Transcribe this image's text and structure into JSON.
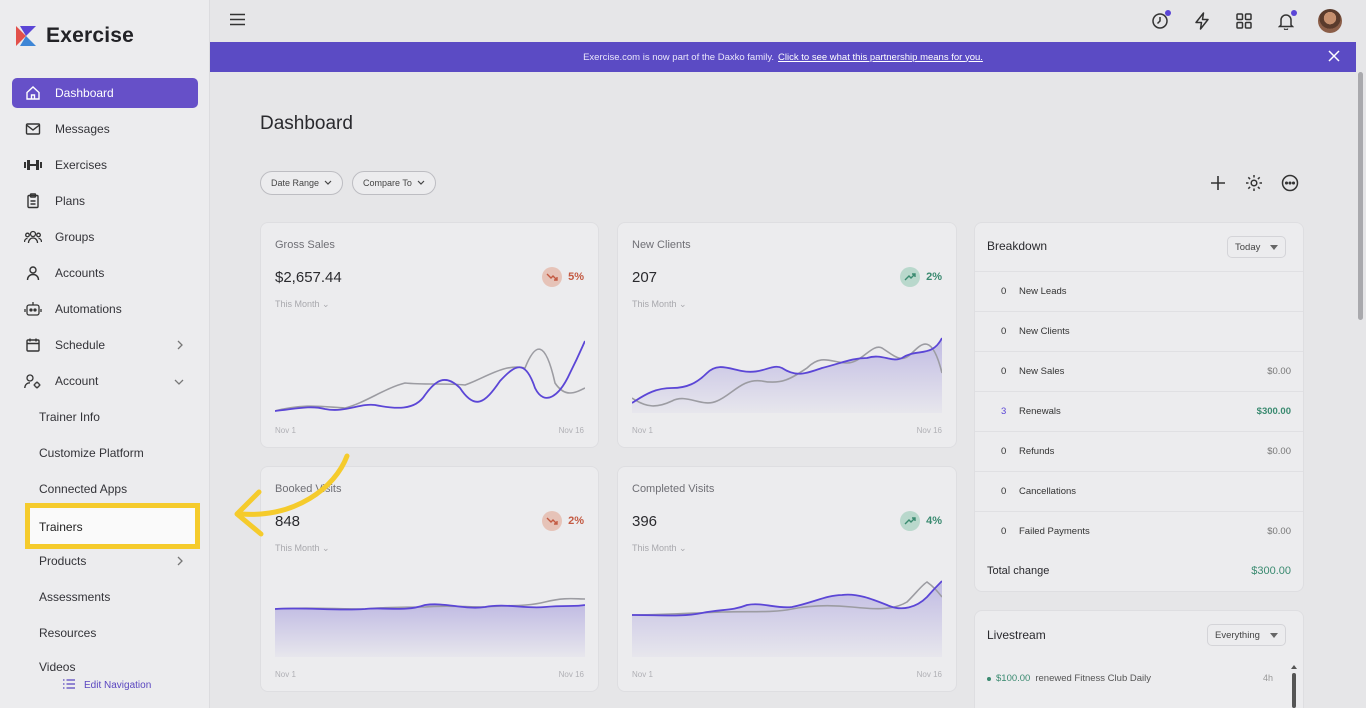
{
  "brand": {
    "name": "Exercise"
  },
  "sidebar": {
    "items": [
      {
        "label": "Dashboard",
        "icon": "home-icon",
        "active": true
      },
      {
        "label": "Messages",
        "icon": "mail-icon"
      },
      {
        "label": "Exercises",
        "icon": "dumbbell-icon"
      },
      {
        "label": "Plans",
        "icon": "clipboard-icon"
      },
      {
        "label": "Groups",
        "icon": "users-icon"
      },
      {
        "label": "Accounts",
        "icon": "user-icon"
      },
      {
        "label": "Automations",
        "icon": "robot-icon"
      },
      {
        "label": "Schedule",
        "icon": "calendar-icon"
      },
      {
        "label": "Account",
        "icon": "user-gear-icon"
      }
    ],
    "sub_items": [
      "Trainer Info",
      "Customize Platform",
      "Connected Apps",
      "Trainers"
    ],
    "lower_items": [
      "Products",
      "Assessments",
      "Resources",
      "Videos"
    ],
    "edit_nav": "Edit Navigation"
  },
  "banner": {
    "text": "Exercise.com is now part of the Daxko family.",
    "link": "Click to see what this partnership means for you."
  },
  "main": {
    "title": "Dashboard",
    "filters": {
      "date_range": "Date Range",
      "compare_to": "Compare To"
    }
  },
  "cards": [
    {
      "title": "Gross Sales",
      "value": "$2,657.44",
      "sub": "This Month",
      "change": "5%",
      "trend": "down",
      "x_start": "Nov 1",
      "x_end": "Nov 16"
    },
    {
      "title": "New Clients",
      "value": "207",
      "sub": "This Month",
      "change": "2%",
      "trend": "up",
      "x_start": "Nov 1",
      "x_end": "Nov 16"
    },
    {
      "title": "Booked Visits",
      "value": "848",
      "sub": "This Month",
      "change": "2%",
      "trend": "down",
      "x_start": "Nov 1",
      "x_end": "Nov 16"
    },
    {
      "title": "Completed Visits",
      "value": "396",
      "sub": "This Month",
      "change": "4%",
      "trend": "up",
      "x_start": "Nov 1",
      "x_end": "Nov 16"
    }
  ],
  "breakdown": {
    "title": "Breakdown",
    "period": "Today",
    "rows": [
      {
        "count": "0",
        "label": "New Leads",
        "amount": ""
      },
      {
        "count": "0",
        "label": "New Clients",
        "amount": ""
      },
      {
        "count": "0",
        "label": "New Sales",
        "amount": "$0.00"
      },
      {
        "count": "3",
        "label": "Renewals",
        "amount": "$300.00"
      },
      {
        "count": "0",
        "label": "Refunds",
        "amount": "$0.00"
      },
      {
        "count": "0",
        "label": "Cancellations",
        "amount": ""
      },
      {
        "count": "0",
        "label": "Failed Payments",
        "amount": "$0.00"
      }
    ],
    "total_label": "Total change",
    "total_amount": "$300.00"
  },
  "livestream": {
    "title": "Livestream",
    "filter": "Everything",
    "items": [
      {
        "amount": "$100.00",
        "text": "renewed Fitness Club Daily",
        "time": "4h"
      }
    ]
  },
  "colors": {
    "accent": "#6650c8",
    "banner": "#5b4bc4",
    "highlight": "#f5cb2c",
    "positive": "#3a8a70",
    "negative": "#c35a42"
  }
}
